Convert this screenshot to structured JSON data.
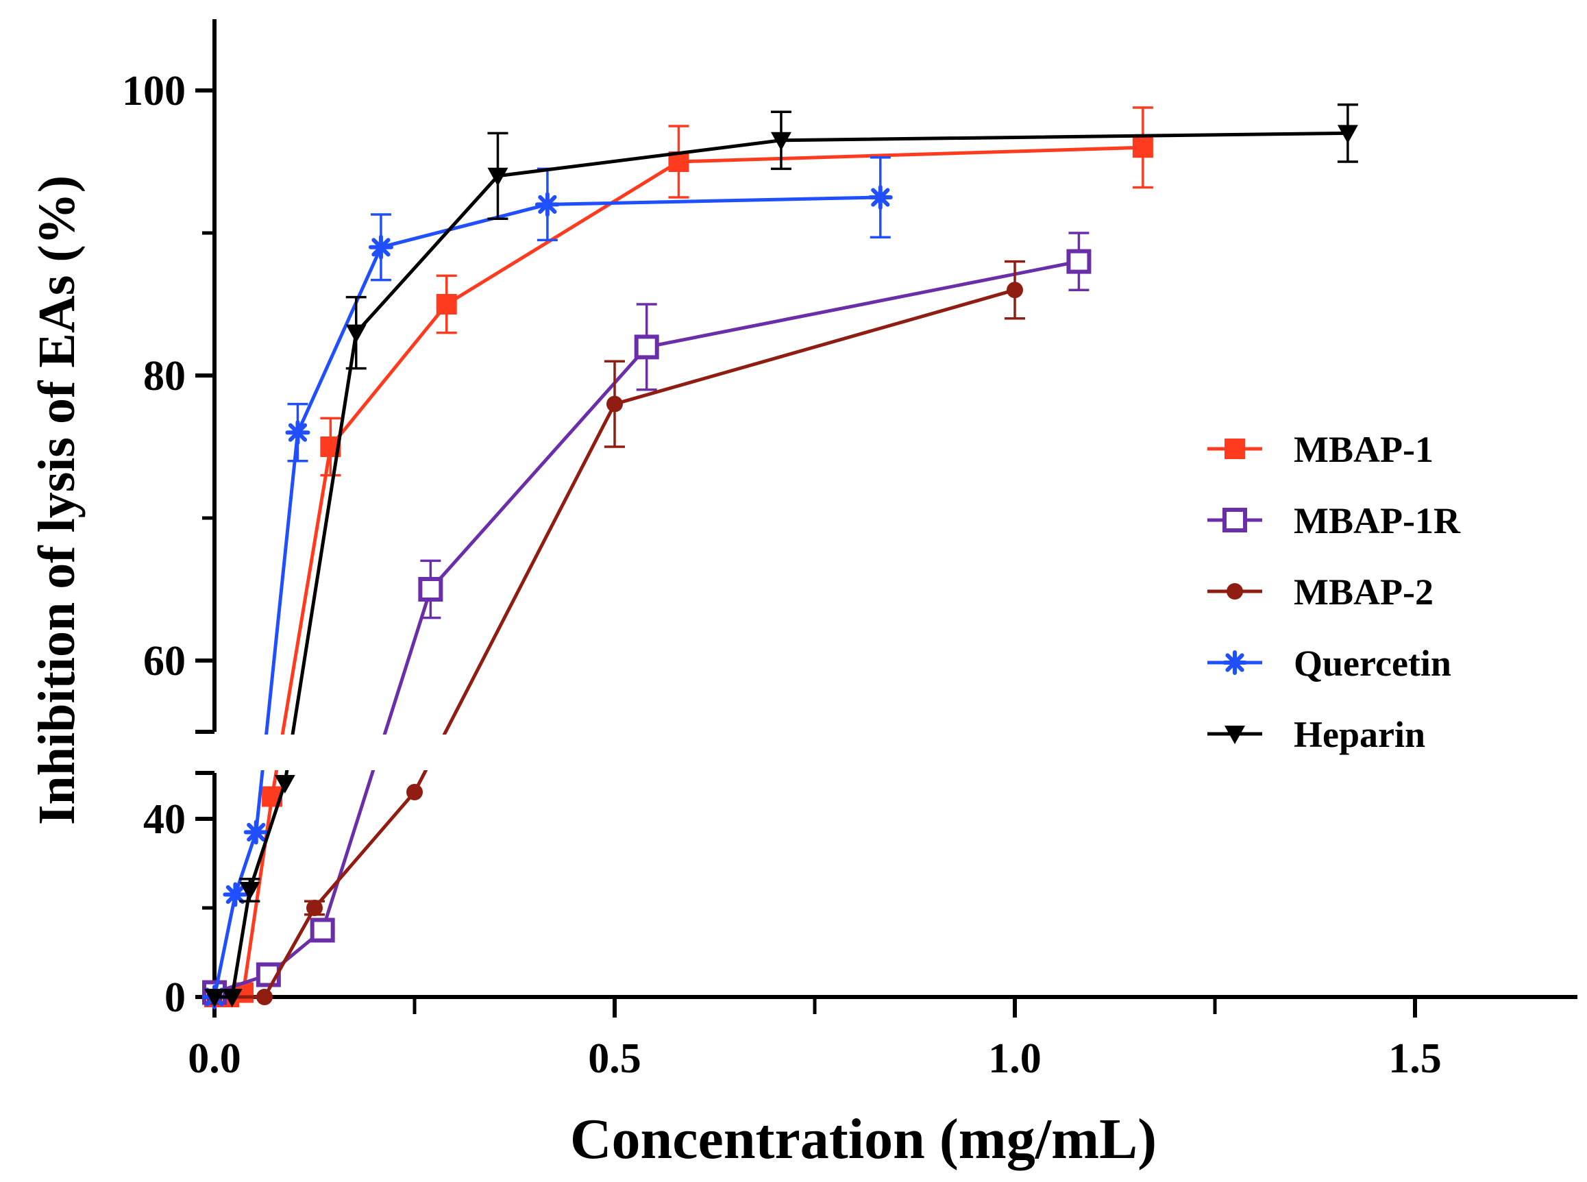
{
  "chart_data": {
    "type": "line",
    "xlabel": "Concentration (mg/mL)",
    "ylabel": "Inhibition of lysis of EAs (%)",
    "xlim": [
      0,
      1.7
    ],
    "ylim_lower": [
      0,
      50
    ],
    "ylim_upper": [
      55,
      105
    ],
    "y_axis_broken": true,
    "x_ticks": [
      "0.0",
      "0.5",
      "1.0",
      "1.5"
    ],
    "x_tick_values": [
      0,
      0.5,
      1.0,
      1.5
    ],
    "y_ticks": [
      "0",
      "40",
      "60",
      "80",
      "100"
    ],
    "y_tick_values": [
      0,
      40,
      60,
      80,
      100
    ],
    "legend_position": "right",
    "series": [
      {
        "name": "MBAP-1",
        "color": "#ff3b1f",
        "marker": "filled-square",
        "x": [
          0.0,
          0.018,
          0.036,
          0.072,
          0.145,
          0.29,
          0.58,
          1.16
        ],
        "y": [
          0,
          0,
          1,
          45,
          75,
          85,
          95,
          96
        ],
        "err": [
          0,
          0,
          0,
          0,
          2.0,
          2.0,
          2.5,
          2.8
        ]
      },
      {
        "name": "MBAP-1R",
        "color": "#6a2fa8",
        "marker": "open-square",
        "x": [
          0.0,
          0.0675,
          0.135,
          0.27,
          0.54,
          1.08
        ],
        "y": [
          1,
          5,
          15,
          65,
          82,
          88
        ],
        "err": [
          0,
          0,
          0,
          2.0,
          3.0,
          2.0
        ]
      },
      {
        "name": "MBAP-2",
        "color": "#8f1d12",
        "marker": "filled-circle",
        "x": [
          0.0,
          0.0625,
          0.125,
          0.25,
          0.5,
          1.0
        ],
        "y": [
          0,
          0,
          20,
          46,
          78,
          86
        ],
        "err": [
          0,
          0,
          1.5,
          0,
          3.0,
          2.0
        ]
      },
      {
        "name": "Quercetin",
        "color": "#1f4fff",
        "marker": "asterisk",
        "x": [
          0.0,
          0.026,
          0.052,
          0.104,
          0.208,
          0.416,
          0.832
        ],
        "y": [
          0,
          23,
          37,
          76,
          89,
          92,
          92.5
        ],
        "err": [
          0,
          0,
          0,
          2.0,
          2.3,
          2.5,
          2.8
        ]
      },
      {
        "name": "Heparin",
        "color": "#000000",
        "marker": "down-triangle",
        "x": [
          0.0,
          0.022,
          0.044,
          0.088,
          0.177,
          0.354,
          0.708,
          1.416
        ],
        "y": [
          0,
          0,
          24,
          48,
          83,
          94,
          96.5,
          97
        ],
        "err": [
          0,
          0,
          2.5,
          0,
          2.5,
          3.0,
          2.0,
          2.0
        ]
      }
    ]
  }
}
